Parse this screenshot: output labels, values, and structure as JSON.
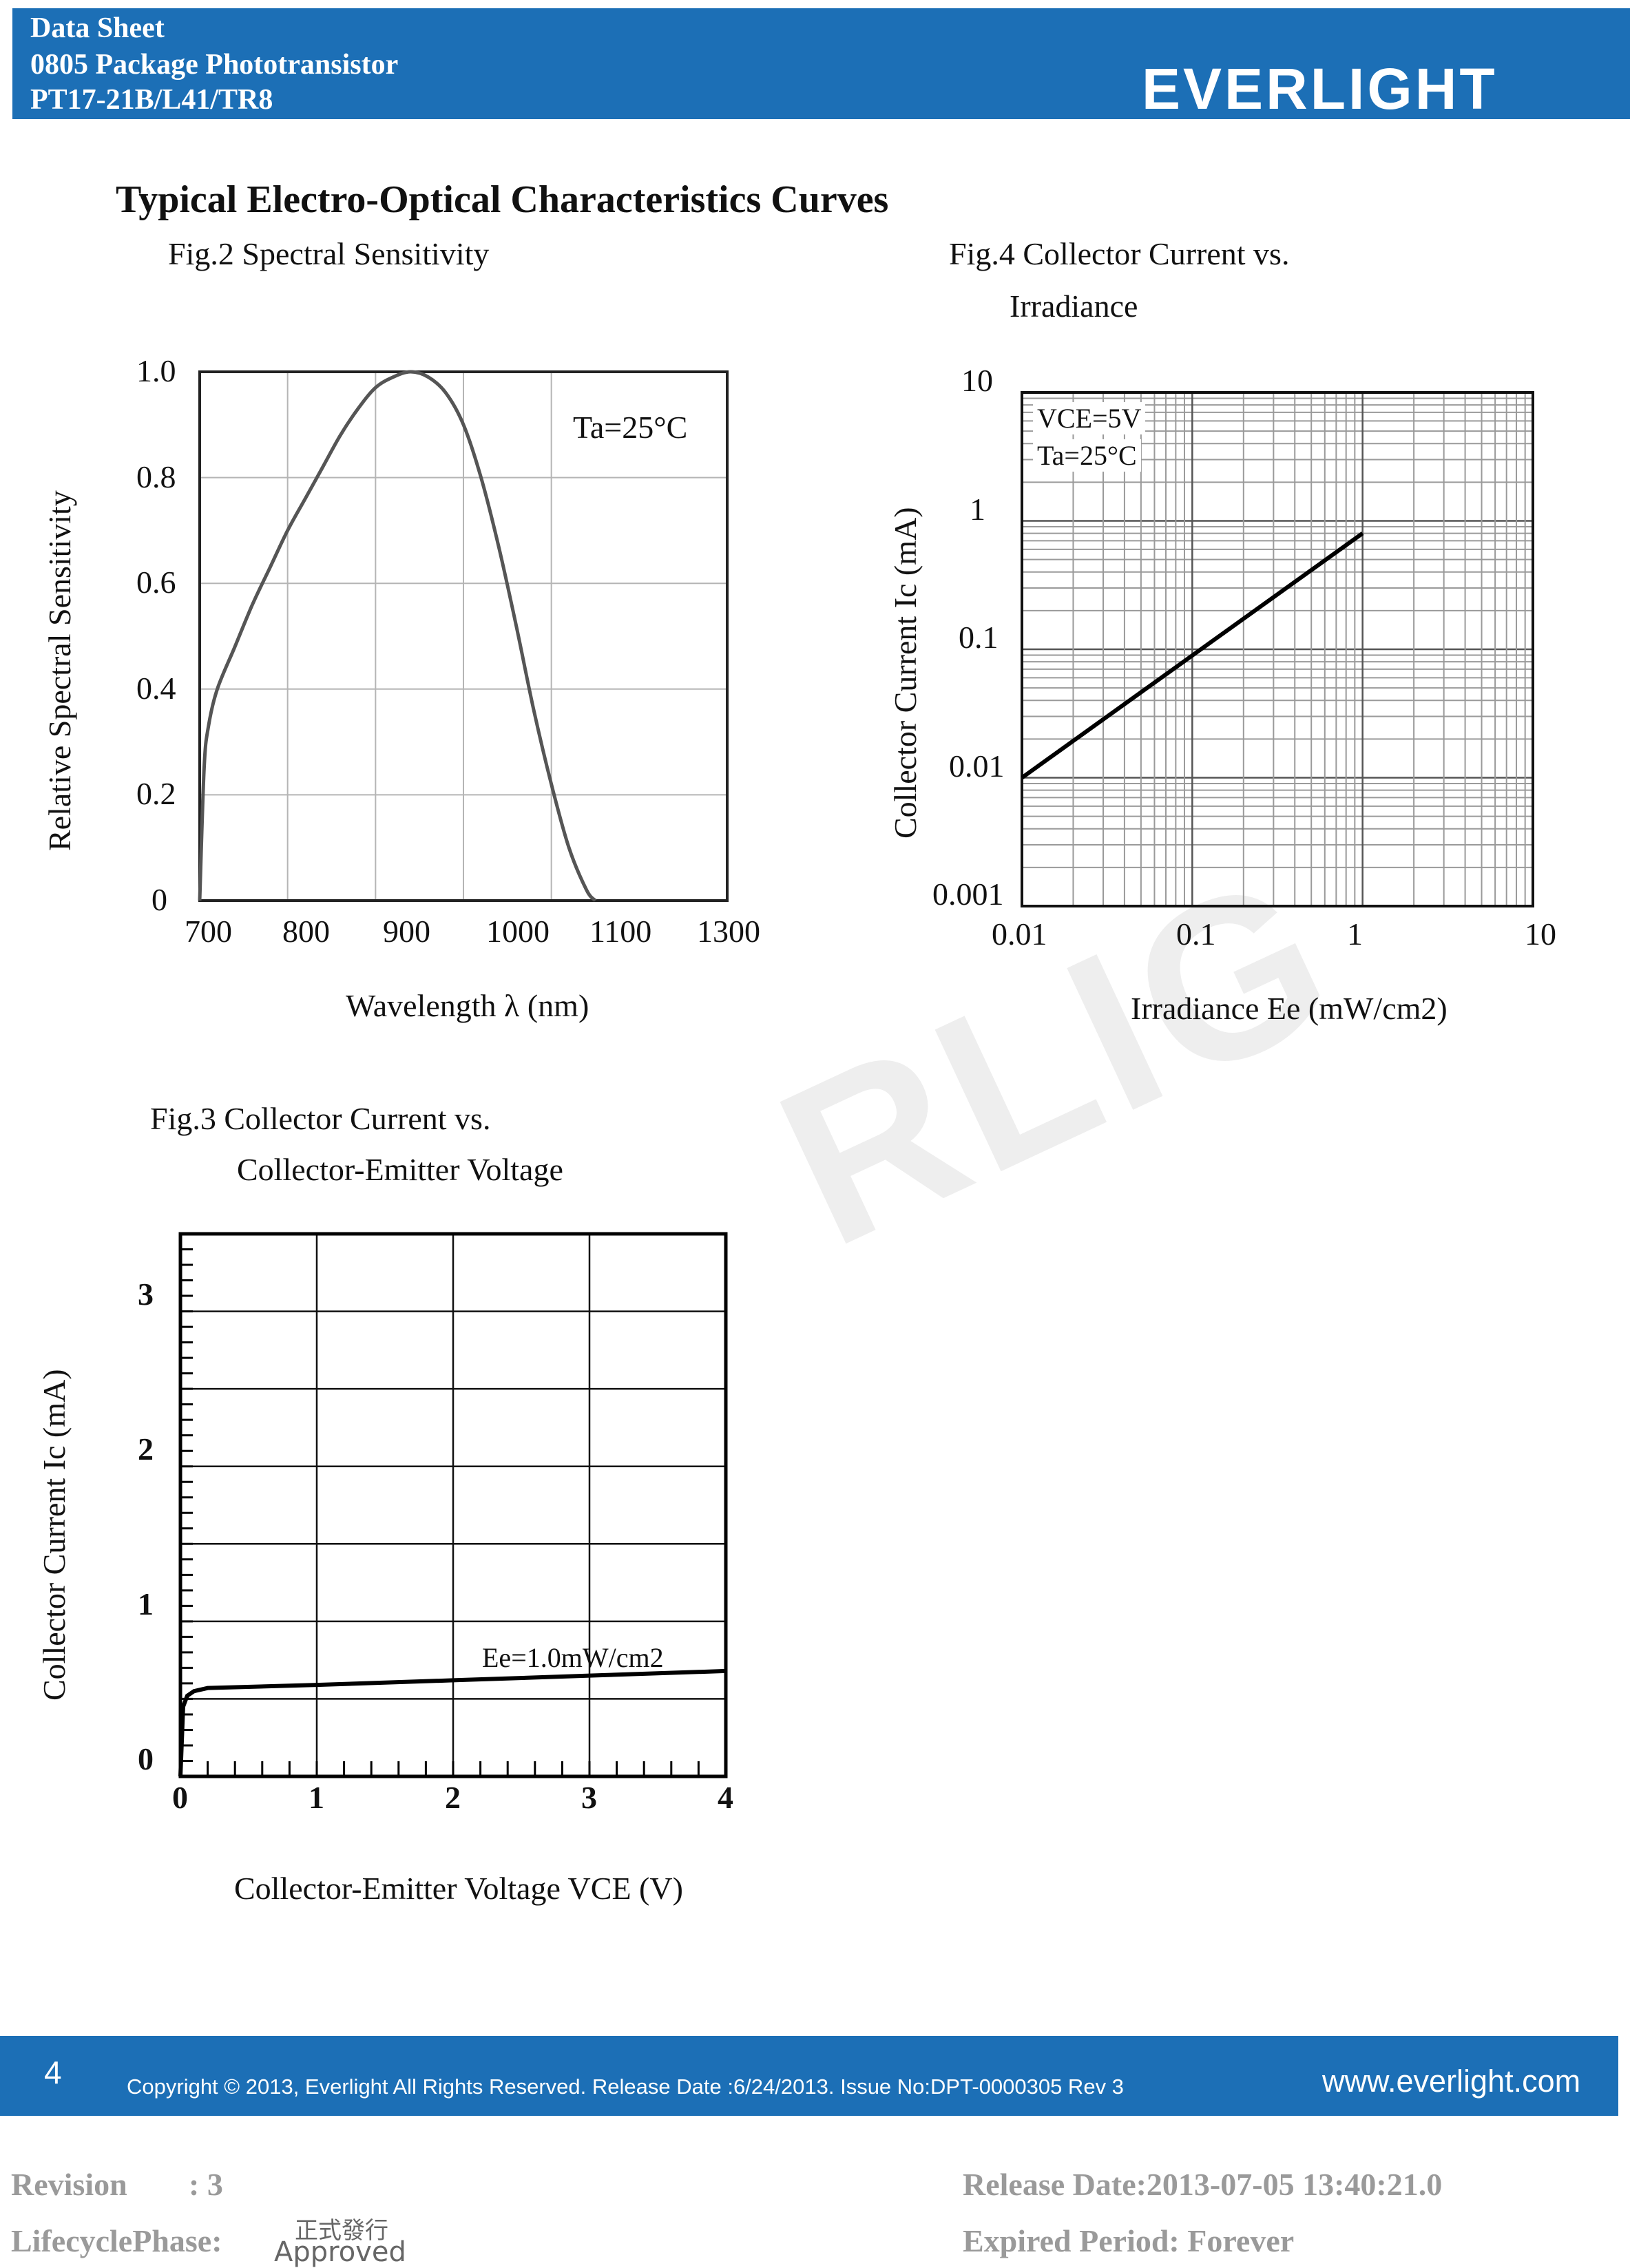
{
  "header": {
    "line1": "Data Sheet",
    "line2": "0805 Package Phototransistor",
    "line3": "PT17-21B/L41/TR8",
    "logo": "EVERLIGHT"
  },
  "colors": {
    "header_blue": "#1c6fb6",
    "meta_gray": "#9a9a9a"
  },
  "section_title": "Typical Electro-Optical Characteristics Curves",
  "watermark": "RLIG",
  "fig2": {
    "caption": "Fig.2 Spectral Sensitivity",
    "annotation": "Ta=25°C",
    "ylabel": "Relative Spectral Sensitivity",
    "xlabel": "Wavelength λ (nm)",
    "yticks": [
      "1.0",
      "0.8",
      "0.6",
      "0.4",
      "0.2",
      "0"
    ],
    "xticks": [
      "700",
      "800",
      "900",
      "1000",
      "1100",
      "1300"
    ]
  },
  "fig4": {
    "caption_line1": "Fig.4 Collector Current vs.",
    "caption_line2": "Irradiance",
    "annotation_line1": "VCE=5V",
    "annotation_line2": "Ta=25°C",
    "ylabel": "Collector Current Ic (mA)",
    "xlabel": "Irradiance Ee (mW/cm2)",
    "yticks": [
      "10",
      "1",
      "0.1",
      "0.01",
      "0.001"
    ],
    "xticks": [
      "0.01",
      "0.1",
      "1",
      "10"
    ]
  },
  "fig3": {
    "caption_line1": "Fig.3 Collector Current vs.",
    "caption_line2": "Collector-Emitter Voltage",
    "annotation": "Ee=1.0mW/cm2",
    "ylabel": "Collector Current Ic (mA)",
    "xlabel": "Collector-Emitter Voltage VCE (V)",
    "yticks": [
      "3",
      "2",
      "1",
      "0"
    ],
    "xticks": [
      "0",
      "1",
      "2",
      "3",
      "4"
    ]
  },
  "chart_data": [
    {
      "type": "line",
      "title": "Fig.2 Spectral Sensitivity",
      "xlabel": "Wavelength λ (nm)",
      "ylabel": "Relative Spectral Sensitivity",
      "xlim": [
        700,
        1300
      ],
      "ylim": [
        0,
        1.0
      ],
      "x_tick_labels": [
        "700",
        "800",
        "900",
        "1000",
        "1100",
        "1300"
      ],
      "grid": true,
      "series": [
        {
          "x": [
            700,
            705,
            710,
            720,
            740,
            760,
            780,
            800,
            820,
            840,
            860,
            880,
            900,
            920,
            940,
            960,
            980,
            1000,
            1020,
            1040,
            1060,
            1080,
            1100,
            1120,
            1140,
            1150
          ],
          "y": [
            0.0,
            0.25,
            0.33,
            0.4,
            0.48,
            0.56,
            0.63,
            0.7,
            0.76,
            0.82,
            0.88,
            0.93,
            0.97,
            0.99,
            1.0,
            0.99,
            0.96,
            0.9,
            0.8,
            0.67,
            0.52,
            0.36,
            0.22,
            0.1,
            0.02,
            0.0
          ]
        }
      ]
    },
    {
      "type": "line",
      "title": "Fig.4 Collector Current vs. Irradiance",
      "xlabel": "Irradiance Ee (mW/cm2)",
      "ylabel": "Collector Current Ic (mA)",
      "x_scale": "log",
      "y_scale": "log",
      "xlim": [
        0.01,
        10
      ],
      "ylim": [
        0.001,
        10
      ],
      "grid": true,
      "series": [
        {
          "x": [
            0.01,
            1.0
          ],
          "y": [
            0.01,
            0.8
          ]
        }
      ]
    },
    {
      "type": "line",
      "title": "Fig.3 Collector Current vs. Collector-Emitter Voltage",
      "xlabel": "Collector-Emitter Voltage VCE (V)",
      "ylabel": "Collector Current Ic (mA)",
      "xlim": [
        0,
        4
      ],
      "ylim": [
        0,
        3.5
      ],
      "grid": true,
      "series": [
        {
          "name": "Ee=1.0mW/cm2",
          "x": [
            0,
            0.02,
            0.05,
            0.1,
            0.2,
            1,
            2,
            3,
            4
          ],
          "y": [
            0,
            0.45,
            0.52,
            0.55,
            0.57,
            0.59,
            0.62,
            0.65,
            0.68
          ]
        }
      ]
    }
  ],
  "footer": {
    "page": "4",
    "copyright": "Copyright © 2013, Everlight All Rights Reserved. Release Date :6/24/2013. Issue No:DPT-0000305 Rev 3",
    "website": "www.everlight.com"
  },
  "meta": {
    "revision_label": "Revision",
    "revision_value": ": 3",
    "lifecycle_label": "LifecyclePhase:",
    "stamp_top": "正式發行",
    "stamp_bottom": "Approved",
    "release": "Release Date:2013-07-05 13:40:21.0",
    "expired": "Expired Period: Forever"
  }
}
